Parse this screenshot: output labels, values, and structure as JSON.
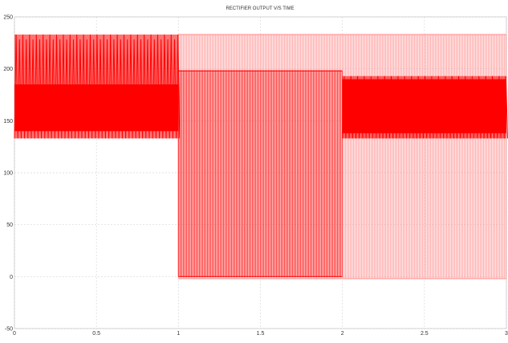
{
  "chart_data": {
    "type": "line",
    "title": "RECTIFIER OUTPUT V/S TIME",
    "xlabel": "",
    "ylabel": "",
    "xlim": [
      0,
      3
    ],
    "ylim": [
      -50,
      250
    ],
    "grid": true,
    "xticks": [
      0,
      0.5,
      1,
      1.5,
      2,
      2.5,
      3
    ],
    "xtick_labels": [
      "0",
      "0.5",
      "1",
      "1.5",
      "2",
      "2.5",
      "3"
    ],
    "yticks": [
      -50,
      0,
      50,
      100,
      150,
      200,
      250
    ],
    "ytick_labels": [
      "-50",
      "0",
      "50",
      "100",
      "150",
      "200",
      "250"
    ],
    "colors": {
      "primary": "#ff0000",
      "light": "#ff9a9a"
    },
    "series": [
      {
        "segments": [
          {
            "t_start": 0,
            "t_end": 1,
            "min": 133,
            "max": 233,
            "dense_min": 140,
            "dense_max": 185,
            "mode": "ripple"
          },
          {
            "t_start": 1,
            "t_end": 2,
            "min": 0,
            "max": 198,
            "dense_min": 0,
            "dense_max": 198,
            "mode": "full"
          },
          {
            "t_start": 2,
            "t_end": 3,
            "min": 133,
            "max": 193,
            "dense_min": 138,
            "dense_max": 190,
            "mode": "ripple"
          }
        ]
      },
      {
        "segments": [
          {
            "t_start": 1,
            "t_end": 3,
            "min": -2,
            "max": 233,
            "mode": "full"
          }
        ]
      }
    ]
  }
}
